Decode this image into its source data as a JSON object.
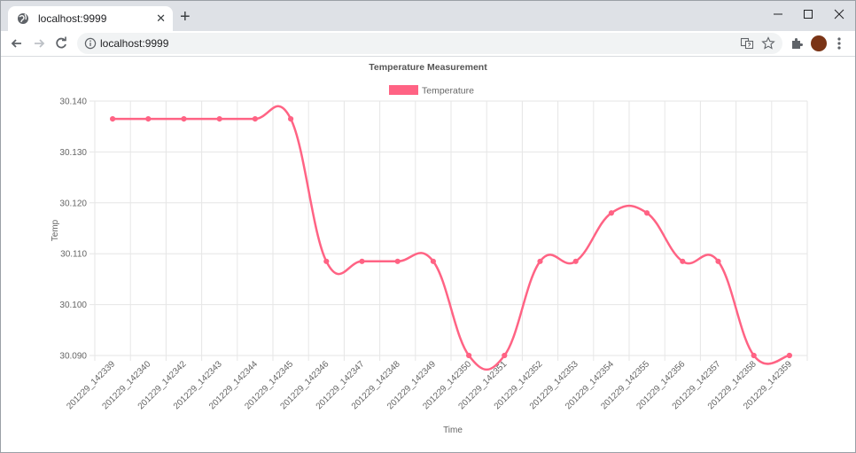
{
  "browser": {
    "tab_title": "localhost:9999",
    "address": "localhost:9999",
    "new_tab_label": "+",
    "close_tab_label": "✕",
    "avatar_color": "#7a3416"
  },
  "chart_data": {
    "type": "line",
    "title": "Temperature Measurement",
    "xlabel": "Time",
    "ylabel": "Temp",
    "ylim": [
      30.09,
      30.14
    ],
    "yticks": [
      "30.140",
      "30.130",
      "30.120",
      "30.110",
      "30.100",
      "30.090"
    ],
    "categories": [
      "201229_142339",
      "201229_142340",
      "201229_142342",
      "201229_142343",
      "201229_142344",
      "201229_142345",
      "201229_142346",
      "201229_142347",
      "201229_142348",
      "201229_142349",
      "201229_142350",
      "201229_142351",
      "201229_142352",
      "201229_142353",
      "201229_142354",
      "201229_142355",
      "201229_142356",
      "201229_142357",
      "201229_142358",
      "201229_142359"
    ],
    "series": [
      {
        "name": "Temperature",
        "color": "#ff6384",
        "values": [
          30.1365,
          30.1365,
          30.1365,
          30.1365,
          30.1365,
          30.1365,
          30.1085,
          30.1085,
          30.1085,
          30.1085,
          30.09,
          30.09,
          30.1085,
          30.1085,
          30.118,
          30.118,
          30.1085,
          30.1085,
          30.09,
          30.09
        ]
      }
    ],
    "grid": true,
    "legend": "top"
  }
}
